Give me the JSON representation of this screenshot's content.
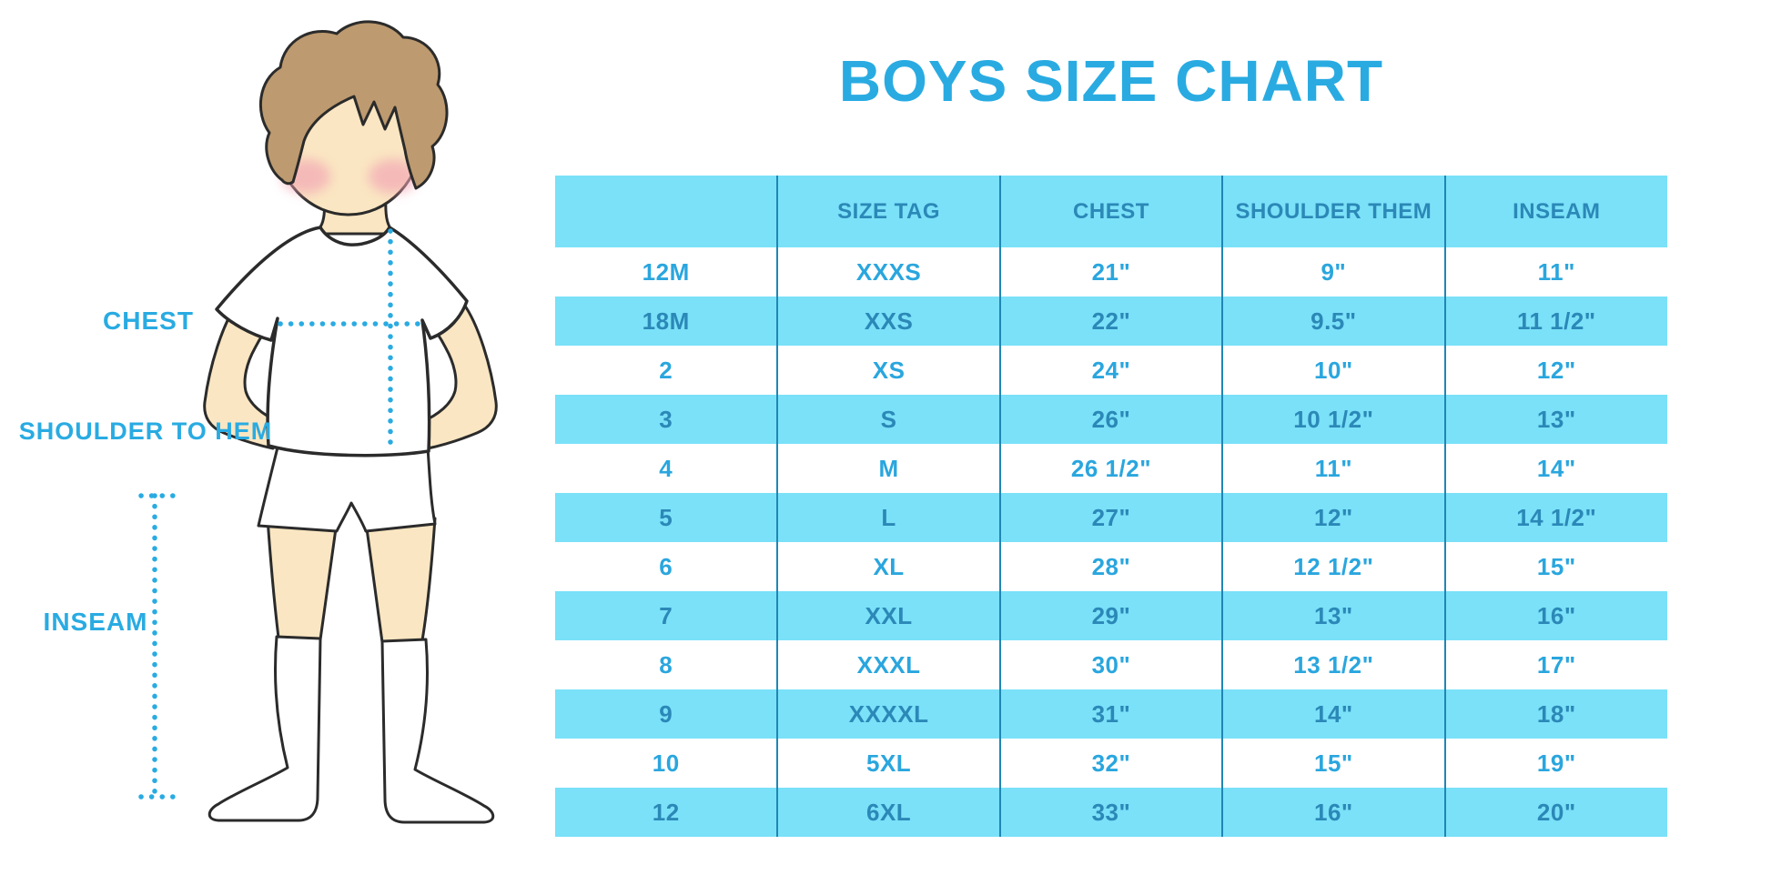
{
  "title": "BOYS SIZE CHART",
  "diagram": {
    "labels": {
      "chest": "CHEST",
      "shoulder_to_hem": "SHOULDER TO HEM",
      "inseam": "INSEAM"
    }
  },
  "chart_data": {
    "type": "table",
    "title": "BOYS SIZE CHART",
    "columns": [
      "",
      "SIZE TAG",
      "CHEST",
      "SHOULDER THEM",
      "INSEAM"
    ],
    "rows": [
      [
        "12M",
        "XXXS",
        "21\"",
        "9\"",
        "11\""
      ],
      [
        "18M",
        "XXS",
        "22\"",
        "9.5\"",
        "11 1/2\""
      ],
      [
        "2",
        "XS",
        "24\"",
        "10\"",
        "12\""
      ],
      [
        "3",
        "S",
        "26\"",
        "10 1/2\"",
        "13\""
      ],
      [
        "4",
        "M",
        "26 1/2\"",
        "11\"",
        "14\""
      ],
      [
        "5",
        "L",
        "27\"",
        "12\"",
        "14 1/2\""
      ],
      [
        "6",
        "XL",
        "28\"",
        "12 1/2\"",
        "15\""
      ],
      [
        "7",
        "XXL",
        "29\"",
        "13\"",
        "16\""
      ],
      [
        "8",
        "XXXL",
        "30\"",
        "13 1/2\"",
        "17\""
      ],
      [
        "9",
        "XXXXL",
        "31\"",
        "14\"",
        "18\""
      ],
      [
        "10",
        "5XL",
        "32\"",
        "15\"",
        "19\""
      ],
      [
        "12",
        "6XL",
        "33\"",
        "16\"",
        "20\""
      ]
    ],
    "row_striping": [
      "white",
      "cyan"
    ],
    "legend_position": "none",
    "grid": "vertical-dividers-only"
  },
  "colors": {
    "accent_blue": "#29ABE2",
    "row_cyan": "#7AE1F8",
    "text_on_cyan": "#2B88B7",
    "text_on_white": "#2AA6DE",
    "column_divider": "#1F86B5",
    "skin": "#FAE6C2",
    "hair": "#BD9A6F",
    "outline": "#2B2B2B",
    "cheek": "#F2A3B3"
  }
}
